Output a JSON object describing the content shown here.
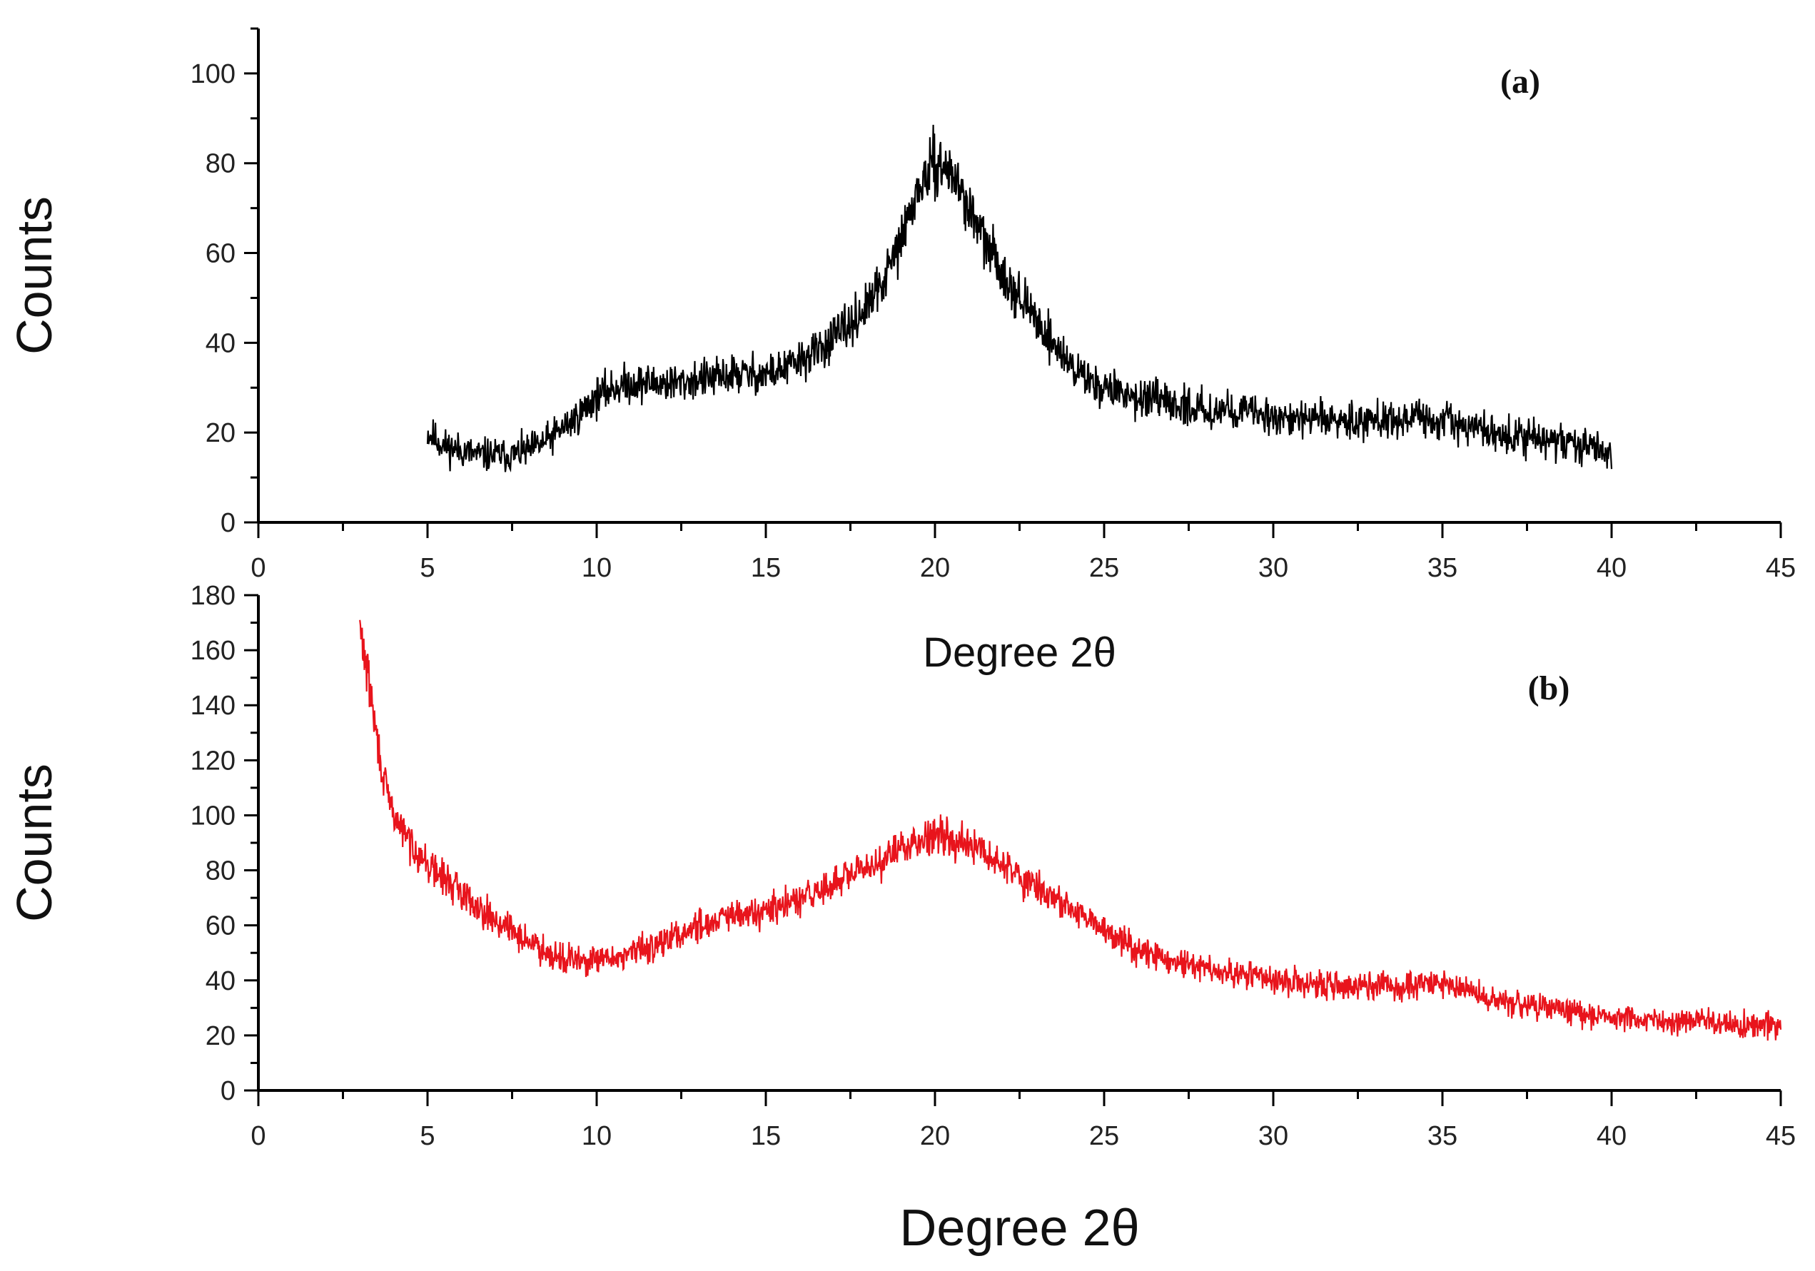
{
  "chart_data": [
    {
      "type": "line",
      "panel_label": "(a)",
      "xlabel": "Degree 2θ",
      "ylabel": "Counts",
      "xlim": [
        0,
        45
      ],
      "ylim": [
        0,
        110
      ],
      "x_ticks": [
        0,
        5,
        10,
        15,
        20,
        25,
        30,
        35,
        40,
        45
      ],
      "y_ticks": [
        0,
        20,
        40,
        60,
        80,
        100
      ],
      "grid": false,
      "series": [
        {
          "color": "#000000",
          "noise_amplitude": 8,
          "x": [
            5,
            5.5,
            6,
            6.5,
            7,
            7.5,
            8,
            8.5,
            9,
            9.5,
            10,
            10.5,
            11,
            11.5,
            12,
            12.5,
            13,
            13.5,
            14,
            14.5,
            15,
            15.5,
            16,
            16.5,
            17,
            17.5,
            18,
            18.5,
            19,
            19.5,
            20,
            20.5,
            21,
            21.5,
            22,
            22.5,
            23,
            23.5,
            24,
            24.5,
            25,
            25.5,
            26,
            26.5,
            27,
            27.5,
            28,
            28.5,
            29,
            29.5,
            30,
            30.5,
            31,
            31.5,
            32,
            32.5,
            33,
            33.5,
            34,
            34.5,
            35,
            35.5,
            36,
            36.5,
            37,
            37.5,
            38,
            38.5,
            39,
            39.5,
            40
          ],
          "y": [
            20,
            17,
            16,
            15,
            15,
            15,
            16,
            18,
            21,
            24,
            28,
            30,
            31,
            31,
            31,
            31,
            32,
            32,
            33,
            33,
            33,
            34,
            36,
            38,
            41,
            44,
            48,
            54,
            63,
            74,
            80,
            78,
            70,
            62,
            56,
            50,
            45,
            40,
            35,
            32,
            30,
            29,
            28,
            27,
            26,
            26,
            25,
            25,
            25,
            24,
            24,
            23,
            23,
            23,
            23,
            23,
            23,
            23,
            23,
            23,
            22,
            22,
            21,
            20,
            19,
            19,
            18,
            18,
            17,
            17,
            15
          ]
        }
      ]
    },
    {
      "type": "line",
      "panel_label": "(b)",
      "xlabel": "Degree 2θ",
      "ylabel": "Counts",
      "xlim": [
        0,
        45
      ],
      "ylim": [
        0,
        180
      ],
      "x_ticks": [
        0,
        5,
        10,
        15,
        20,
        25,
        30,
        35,
        40,
        45
      ],
      "y_ticks": [
        0,
        20,
        40,
        60,
        80,
        100,
        120,
        140,
        160,
        180
      ],
      "grid": false,
      "series": [
        {
          "color": "#e8141c",
          "noise_amplitude": 10,
          "x": [
            3,
            3.25,
            3.5,
            3.75,
            4,
            4.5,
            5,
            5.5,
            6,
            6.5,
            7,
            7.5,
            8,
            8.5,
            9,
            9.5,
            10,
            10.5,
            11,
            11.5,
            12,
            12.5,
            13,
            13.5,
            14,
            14.5,
            15,
            15.5,
            16,
            16.5,
            17,
            17.5,
            18,
            18.5,
            19,
            19.5,
            20,
            20.5,
            21,
            21.5,
            22,
            22.5,
            23,
            23.5,
            24,
            24.5,
            25,
            25.5,
            26,
            26.5,
            27,
            27.5,
            28,
            28.5,
            29,
            29.5,
            30,
            30.5,
            31,
            31.5,
            32,
            32.5,
            33,
            33.5,
            34,
            34.5,
            35,
            35.5,
            36,
            36.5,
            37,
            37.5,
            38,
            38.5,
            39,
            39.5,
            40,
            40.5,
            41,
            41.5,
            42,
            42.5,
            43,
            43.5,
            44,
            44.5,
            45
          ],
          "y": [
            168,
            150,
            128,
            110,
            100,
            90,
            82,
            77,
            72,
            67,
            62,
            58,
            54,
            51,
            48,
            47,
            47,
            48,
            50,
            52,
            54,
            57,
            60,
            62,
            63,
            64,
            65,
            67,
            69,
            72,
            75,
            78,
            81,
            84,
            88,
            91,
            94,
            92,
            89,
            86,
            82,
            78,
            74,
            70,
            66,
            62,
            58,
            55,
            52,
            49,
            47,
            45,
            44,
            43,
            42,
            41,
            40,
            39,
            39,
            38,
            38,
            38,
            38,
            38,
            38,
            38,
            39,
            37,
            35,
            33,
            32,
            31,
            30,
            29,
            28,
            27,
            27,
            26,
            26,
            26,
            25,
            25,
            25,
            24,
            24,
            24,
            23
          ]
        }
      ]
    }
  ]
}
